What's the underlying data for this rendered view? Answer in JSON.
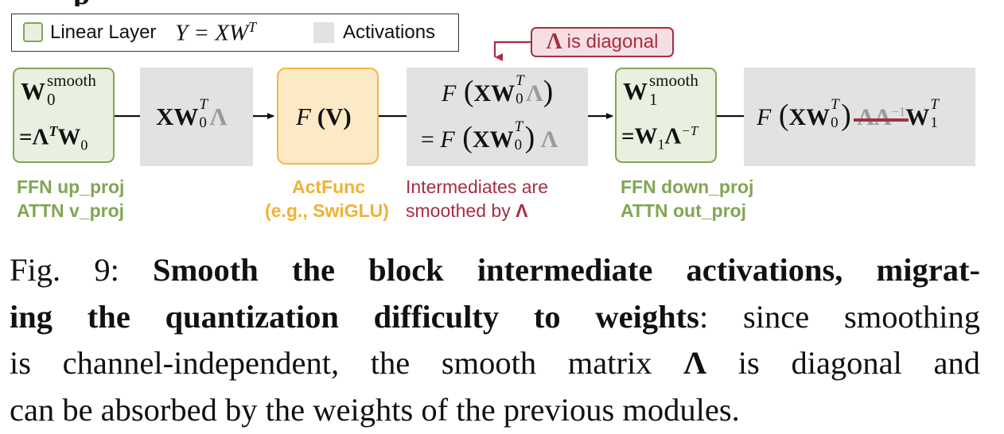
{
  "legend": {
    "linear_label": "Linear Layer",
    "linear_equation": "Y = XW",
    "linear_equation_sup": "T",
    "activations_label": "Activations"
  },
  "callout": {
    "symbol": "Λ",
    "text": "is diagonal"
  },
  "blocks": {
    "up_weight": {
      "line1_main": "W",
      "line1_sup": "smooth",
      "line1_sub": "0",
      "line2": "=Λ",
      "line2_sup": "T",
      "line2_main": "W",
      "line2_sub": "0"
    },
    "act1": {
      "main": "XW",
      "sup": "T",
      "sub": "0",
      "lam": "Λ"
    },
    "actfunc": {
      "text": "F (V)"
    },
    "act2": {
      "line1_f": "F",
      "line1_main": "XW",
      "line1_sup": "T",
      "line1_sub": "0",
      "line1_lam": "Λ",
      "line2_prefix": "= F",
      "line2_main": "XW",
      "line2_sup": "T",
      "line2_sub": "0",
      "line2_lam": "Λ"
    },
    "down_weight": {
      "line1_main": "W",
      "line1_sup": "smooth",
      "line1_sub": "1",
      "line2": "=W",
      "line2_sub": "1",
      "line2_lam": "Λ",
      "line2_sup": "−T"
    },
    "act3": {
      "f": "F",
      "main": "XW",
      "sup": "T",
      "sub": "0",
      "cancel": "ΛΛ",
      "cancel_sup": "−1",
      "tail": "W",
      "tail_sup": "T",
      "tail_sub": "1"
    }
  },
  "captions": {
    "up": [
      "FFN up_proj",
      "ATTN v_proj"
    ],
    "actfunc": [
      "ActFunc",
      "(e.g., SwiGLU)"
    ],
    "intermediate": [
      "Intermediates are",
      "smoothed by"
    ],
    "intermediate_symbol": "Λ",
    "down": [
      "FFN down_proj",
      "ATTN out_proj"
    ]
  },
  "figure_caption": {
    "label": "Fig. 9:",
    "bold_text": "Smooth the block intermediate activations, migrat-",
    "bold_text_2": "ing the quantization difficulty to weights",
    "rest_1": ": since smoothing",
    "line3": "is channel-independent, the smooth matrix",
    "line3_symbol": "Λ",
    "line3_end": "is diagonal and",
    "line4": "can be absorbed by the weights of the previous modules."
  },
  "colors": {
    "green": "#82a554",
    "orange": "#f0b232",
    "red": "#a72e44",
    "gray_fill": "#e2e2e2"
  }
}
